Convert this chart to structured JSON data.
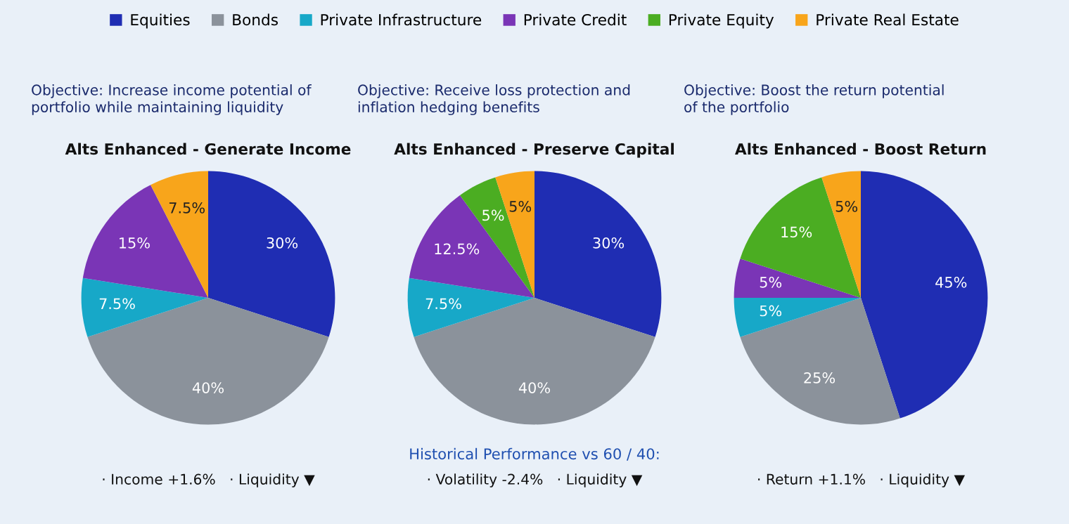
{
  "chart_data": [
    {
      "type": "pie",
      "title": "Alts Enhanced - Generate Income",
      "subtitle": "Objective: Increase income potential of\nportfolio while maintaining liquidity",
      "legend": "top",
      "categories": [
        "Equities",
        "Bonds",
        "Private Infrastructure",
        "Private Credit",
        "Private Equity",
        "Private Real Estate"
      ],
      "values": [
        30,
        40,
        7.5,
        15,
        0,
        7.5
      ],
      "colors": [
        "#1f2db3",
        "#8b929b",
        "#17a8c8",
        "#7a35b6",
        "#4bad22",
        "#f8a51b"
      ],
      "value_labels": [
        "30%",
        "40%",
        "7.5%",
        "15%",
        null,
        "7.5%"
      ],
      "annotations": [
        "· Income +1.6%   · Liquidity ▼"
      ]
    },
    {
      "type": "pie",
      "title": "Alts Enhanced - Preserve Capital",
      "subtitle": "Objective: Receive loss protection and\ninflation hedging benefits",
      "categories": [
        null,
        null,
        null,
        null,
        null,
        null
      ],
      "values": [
        30,
        40,
        7.5,
        12.5,
        5,
        5
      ],
      "colors": [
        "#1f2db3",
        "#8b929b",
        "#17a8c8",
        "#7a35b6",
        "#4bad22",
        "#f8a51b"
      ],
      "value_labels": [
        "30%",
        "40%",
        "7.5%",
        "12.5%",
        "5%",
        "5%"
      ],
      "annotations": [
        "Historical Performance vs 60 / 40:",
        "· Volatility -2.4%   · Liquidity ▼"
      ]
    },
    {
      "type": "pie",
      "title": "Alts Enhanced - Boost Return",
      "subtitle": "Objective: Boost the return potential\nof the portfolio",
      "categories": [
        null,
        null,
        null,
        null,
        null,
        null
      ],
      "values": [
        45,
        25,
        5,
        5,
        15,
        5
      ],
      "colors": [
        "#1f2db3",
        "#8b929b",
        "#17a8c8",
        "#7a35b6",
        "#4bad22",
        "#f8a51b"
      ],
      "value_labels": [
        "45%",
        "25%",
        "5%",
        "5%",
        "15%",
        "5%"
      ],
      "annotations": [
        "· Return +1.1%   · Liquidity ▼"
      ]
    }
  ]
}
